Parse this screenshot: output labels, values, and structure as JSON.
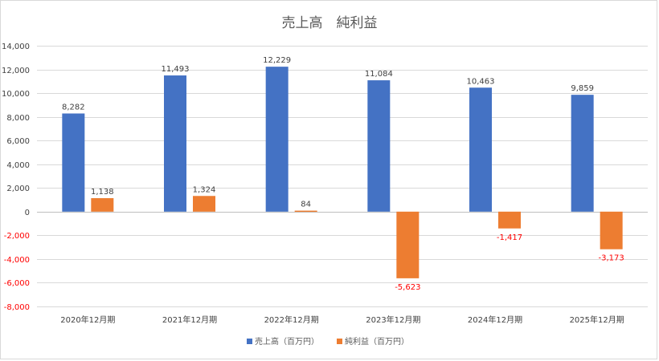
{
  "chart_data": {
    "type": "bar",
    "title": "売上高　純利益",
    "categories": [
      "2020年12月期",
      "2021年12月期",
      "2022年12月期",
      "2023年12月期",
      "2024年12月期",
      "2025年12月期"
    ],
    "series": [
      {
        "name": "売上高（百万円）",
        "color": "#4472c4",
        "values": [
          8282,
          11493,
          12229,
          11084,
          10463,
          9859
        ],
        "labels": [
          "8,282",
          "11,493",
          "12,229",
          "11,084",
          "10,463",
          "9,859"
        ]
      },
      {
        "name": "純利益（百万円）",
        "color": "#ed7d31",
        "values": [
          1138,
          1324,
          84,
          -5623,
          -1417,
          -3173
        ],
        "labels": [
          "1,138",
          "1,324",
          "84",
          "-5,623",
          "-1,417",
          "-3,173"
        ]
      }
    ],
    "ylim": [
      -8000,
      14000
    ],
    "yticks": [
      14000,
      12000,
      10000,
      8000,
      6000,
      4000,
      2000,
      0,
      -2000,
      -4000,
      -6000,
      -8000
    ],
    "ytick_labels": [
      "14,000",
      "12,000",
      "10,000",
      "8,000",
      "6,000",
      "4,000",
      "2,000",
      "0",
      "-2,000",
      "-4,000",
      "-6,000",
      "-8,000"
    ],
    "negative_color": "#ff0000",
    "grid": true,
    "legend_position": "bottom",
    "xlabel": "",
    "ylabel": ""
  }
}
